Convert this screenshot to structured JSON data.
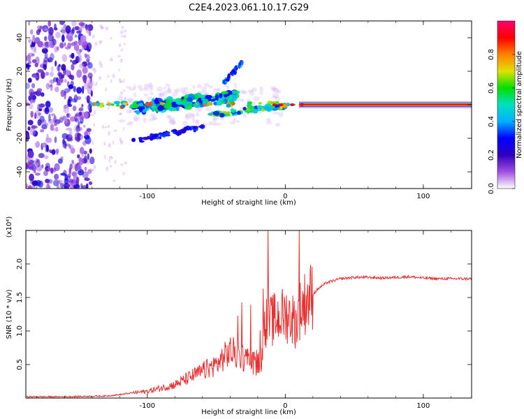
{
  "title": "C2E4.2023.061.10.17.G29",
  "chart_data": [
    {
      "type": "heatmap",
      "xlabel": "Height of straight line (km)",
      "ylabel": "Frequency (Hz)",
      "xlim": [
        -188,
        135
      ],
      "ylim": [
        -50,
        50
      ],
      "x_ticks": [
        -100,
        0,
        100
      ],
      "y_ticks": [
        -40,
        -20,
        0,
        20,
        40
      ],
      "colorbar": {
        "label": "Normalized spectral amplitude",
        "range": [
          0,
          1
        ],
        "ticks": [
          "0.0",
          "0.2",
          "0.4",
          "0.6",
          "0.8"
        ],
        "ticks_values": [
          0,
          0.2,
          0.4,
          0.6,
          0.8
        ],
        "colormap": [
          "#ffffff",
          "#a050e0",
          "#3000c0",
          "#0000ff",
          "#00b0ff",
          "#00e0c0",
          "#00e000",
          "#e0e000",
          "#ff8000",
          "#ff0000",
          "#ff0070"
        ]
      },
      "features": [
        {
          "name": "carrier",
          "x_range": [
            -140,
            135
          ],
          "frequency": 0
        },
        {
          "name": "upper-branch",
          "x_range": [
            -110,
            -35
          ],
          "frequency_range": [
            -2,
            5
          ]
        },
        {
          "name": "steep-branch",
          "x_range": [
            -45,
            -30
          ],
          "frequency_range": [
            15,
            25
          ]
        },
        {
          "name": "lower-branch",
          "x_range": [
            -110,
            -60
          ],
          "frequency_range": [
            -22,
            -13
          ]
        }
      ]
    },
    {
      "type": "line",
      "xlabel": "Height of straight line (km)",
      "ylabel": "SNR (10 * v/v)",
      "y_multiplier": "(x10⁴)",
      "xlim": [
        -188,
        135
      ],
      "ylim": [
        0,
        2.5
      ],
      "x_ticks": [
        -100,
        0,
        100
      ],
      "y_ticks": [
        0.5,
        1.0,
        1.5,
        2.0
      ],
      "y_tick_labels": [
        "0.5",
        "1.0",
        "1.5",
        "2.0"
      ],
      "series": [
        {
          "color": "#e83030",
          "x": [
            -188,
            -160,
            -130,
            -120,
            -110,
            -100,
            -90,
            -80,
            -70,
            -60,
            -50,
            -45,
            -40,
            -35,
            -30,
            -25,
            -20,
            -17,
            -15,
            -13,
            -10,
            -5,
            0,
            5,
            8,
            10,
            12,
            15,
            20,
            25,
            30,
            40,
            50,
            60,
            70,
            80,
            90,
            100,
            110,
            120,
            135
          ],
          "y": [
            0.02,
            0.02,
            0.03,
            0.05,
            0.08,
            0.1,
            0.15,
            0.2,
            0.3,
            0.4,
            0.5,
            0.6,
            0.7,
            0.65,
            0.6,
            0.55,
            0.5,
            0.6,
            1.2,
            1.1,
            1.15,
            1.2,
            1.25,
            1.2,
            1.1,
            1.3,
            1.35,
            1.45,
            1.55,
            1.65,
            1.72,
            1.78,
            1.8,
            1.8,
            1.79,
            1.8,
            1.81,
            1.79,
            1.78,
            1.78,
            1.78
          ]
        }
      ],
      "spikes": [
        {
          "x": -12.5,
          "y": 2.5
        },
        {
          "x": 10,
          "y": 2.5
        }
      ]
    }
  ]
}
